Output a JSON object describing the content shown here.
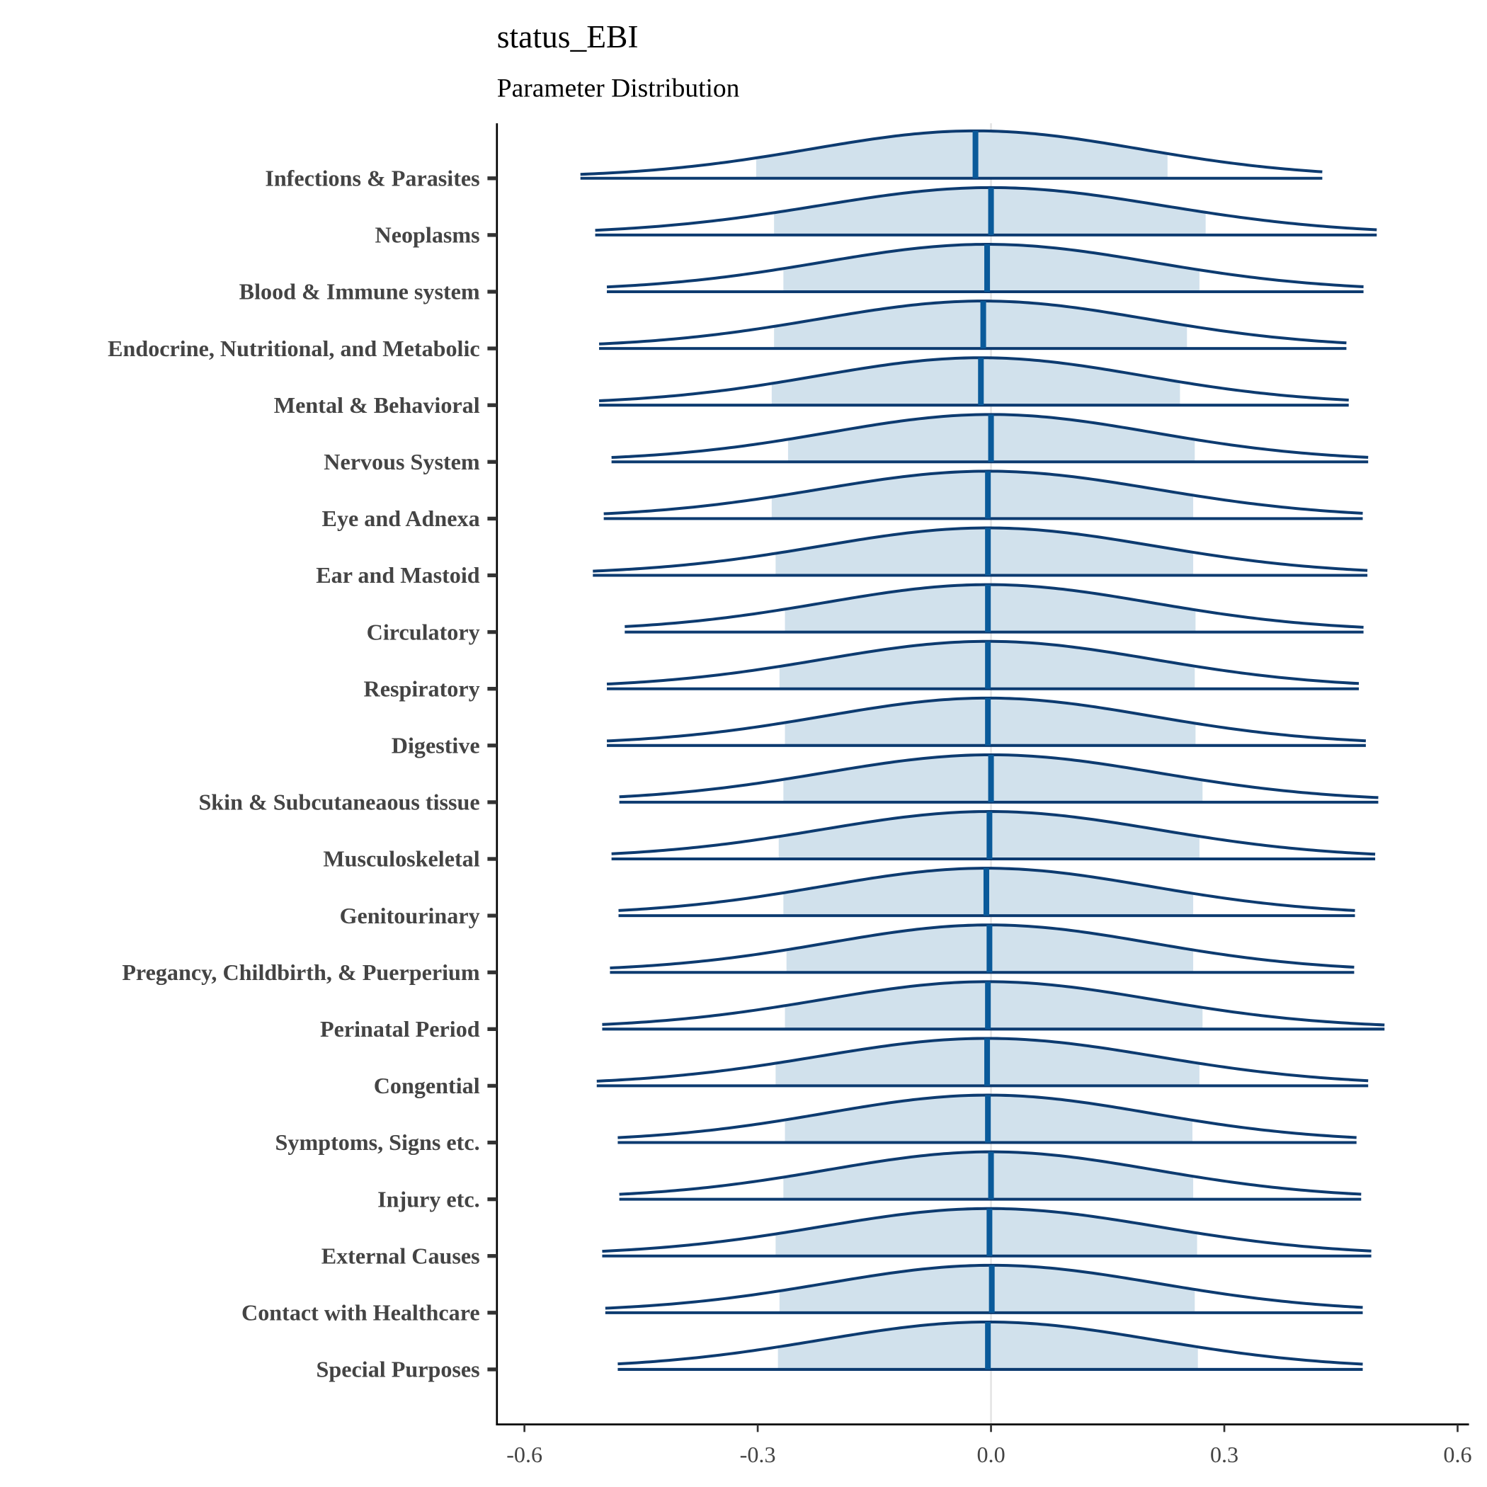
{
  "chart_data": {
    "type": "ridgeline-density",
    "title": "status_EBI",
    "subtitle": "Parameter Distribution",
    "xlabel": "",
    "ylabel": "",
    "xlim": [
      -0.6,
      0.6
    ],
    "x_ticks": [
      "-0.6",
      "-0.3",
      "0.0",
      "0.3",
      "0.6"
    ],
    "x_tick_values": [
      -0.6,
      -0.3,
      0.0,
      0.3,
      0.6
    ],
    "reference_line": 0.0,
    "grid": false,
    "colors": {
      "outline": "#0d3b70",
      "interval_fill": "#d1e1ec",
      "median": "#0a5a9a",
      "reference": "#e5e5e5"
    },
    "series": [
      {
        "name": "Infections & Parasites",
        "median": -0.02,
        "interval": [
          -0.302,
          0.227
        ],
        "range": [
          -0.528,
          0.426
        ]
      },
      {
        "name": "Neoplasms",
        "median": 0.0,
        "interval": [
          -0.279,
          0.276
        ],
        "range": [
          -0.509,
          0.496
        ]
      },
      {
        "name": "Blood & Immune system",
        "median": -0.005,
        "interval": [
          -0.267,
          0.268
        ],
        "range": [
          -0.494,
          0.479
        ]
      },
      {
        "name": "Endocrine, Nutritional, and Metabolic",
        "median": -0.01,
        "interval": [
          -0.279,
          0.252
        ],
        "range": [
          -0.504,
          0.457
        ]
      },
      {
        "name": "Mental & Behavioral",
        "median": -0.013,
        "interval": [
          -0.282,
          0.243
        ],
        "range": [
          -0.504,
          0.46
        ]
      },
      {
        "name": "Nervous System",
        "median": 0.0,
        "interval": [
          -0.261,
          0.262
        ],
        "range": [
          -0.488,
          0.485
        ]
      },
      {
        "name": "Eye and Adnexa",
        "median": -0.004,
        "interval": [
          -0.282,
          0.26
        ],
        "range": [
          -0.498,
          0.478
        ]
      },
      {
        "name": "Ear and Mastoid",
        "median": -0.004,
        "interval": [
          -0.277,
          0.26
        ],
        "range": [
          -0.512,
          0.484
        ]
      },
      {
        "name": "Circulatory",
        "median": -0.004,
        "interval": [
          -0.265,
          0.263
        ],
        "range": [
          -0.471,
          0.479
        ]
      },
      {
        "name": "Respiratory",
        "median": -0.004,
        "interval": [
          -0.272,
          0.262
        ],
        "range": [
          -0.494,
          0.473
        ]
      },
      {
        "name": "Digestive",
        "median": -0.004,
        "interval": [
          -0.265,
          0.263
        ],
        "range": [
          -0.494,
          0.482
        ]
      },
      {
        "name": "Skin & Subcutaneaous tissue",
        "median": 0.0,
        "interval": [
          -0.267,
          0.272
        ],
        "range": [
          -0.478,
          0.498
        ]
      },
      {
        "name": "Musculoskeletal",
        "median": -0.002,
        "interval": [
          -0.273,
          0.268
        ],
        "range": [
          -0.488,
          0.494
        ]
      },
      {
        "name": "Genitourinary",
        "median": -0.006,
        "interval": [
          -0.267,
          0.26
        ],
        "range": [
          -0.479,
          0.468
        ]
      },
      {
        "name": "Pregancy, Childbirth, & Puerperium",
        "median": -0.002,
        "interval": [
          -0.263,
          0.26
        ],
        "range": [
          -0.49,
          0.467
        ]
      },
      {
        "name": "Perinatal Period",
        "median": -0.004,
        "interval": [
          -0.265,
          0.272
        ],
        "range": [
          -0.5,
          0.506
        ]
      },
      {
        "name": "Congential",
        "median": -0.005,
        "interval": [
          -0.277,
          0.268
        ],
        "range": [
          -0.507,
          0.485
        ]
      },
      {
        "name": "Symptoms, Signs etc.",
        "median": -0.004,
        "interval": [
          -0.265,
          0.259
        ],
        "range": [
          -0.48,
          0.47
        ]
      },
      {
        "name": "Injury etc.",
        "median": 0.0,
        "interval": [
          -0.267,
          0.26
        ],
        "range": [
          -0.478,
          0.476
        ]
      },
      {
        "name": "External Causes",
        "median": -0.002,
        "interval": [
          -0.277,
          0.265
        ],
        "range": [
          -0.5,
          0.489
        ]
      },
      {
        "name": "Contact with Healthcare",
        "median": 0.001,
        "interval": [
          -0.272,
          0.262
        ],
        "range": [
          -0.496,
          0.478
        ]
      },
      {
        "name": "Special Purposes",
        "median": -0.004,
        "interval": [
          -0.274,
          0.266
        ],
        "range": [
          -0.48,
          0.478
        ]
      }
    ]
  }
}
